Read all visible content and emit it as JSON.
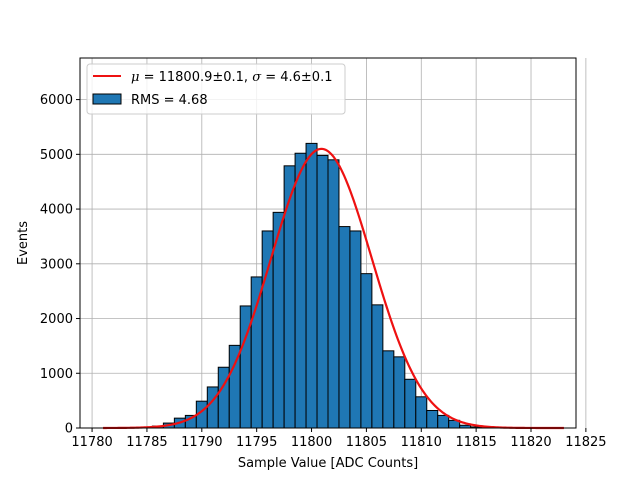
{
  "chart_data": {
    "type": "bar",
    "xlabel": "Sample Value [ADC Counts]",
    "ylabel": "Events",
    "xlim": [
      11778.9,
      11824.1
    ],
    "ylim": [
      0,
      6760
    ],
    "grid": true,
    "legend_position": "top-left",
    "xticks": [
      11780,
      11785,
      11790,
      11795,
      11800,
      11805,
      11810,
      11815,
      11820,
      11825
    ],
    "xtick_labels": [
      "11780",
      "11785",
      "11790",
      "11795",
      "11800",
      "11805",
      "11810",
      "11815",
      "11820",
      "11825"
    ],
    "yticks": [
      0,
      1000,
      2000,
      3000,
      4000,
      5000,
      6000
    ],
    "ytick_labels": [
      "0",
      "1000",
      "2000",
      "3000",
      "4000",
      "5000",
      "6000"
    ],
    "histogram": {
      "bin_width": 1,
      "color": "#1f77b4",
      "edge_color": "#000000",
      "bins": [
        {
          "x": 11783,
          "value": 5
        },
        {
          "x": 11784,
          "value": 10
        },
        {
          "x": 11785,
          "value": 15
        },
        {
          "x": 11786,
          "value": 35
        },
        {
          "x": 11787,
          "value": 90
        },
        {
          "x": 11788,
          "value": 180
        },
        {
          "x": 11789,
          "value": 230
        },
        {
          "x": 11790,
          "value": 490
        },
        {
          "x": 11791,
          "value": 750
        },
        {
          "x": 11792,
          "value": 1110
        },
        {
          "x": 11793,
          "value": 1510
        },
        {
          "x": 11794,
          "value": 2230
        },
        {
          "x": 11795,
          "value": 2760
        },
        {
          "x": 11796,
          "value": 3600
        },
        {
          "x": 11797,
          "value": 3940
        },
        {
          "x": 11798,
          "value": 4790
        },
        {
          "x": 11799,
          "value": 5020
        },
        {
          "x": 11800,
          "value": 5200
        },
        {
          "x": 11801,
          "value": 4980
        },
        {
          "x": 11802,
          "value": 4900
        },
        {
          "x": 11803,
          "value": 3680
        },
        {
          "x": 11804,
          "value": 3600
        },
        {
          "x": 11805,
          "value": 2820
        },
        {
          "x": 11806,
          "value": 2250
        },
        {
          "x": 11807,
          "value": 1410
        },
        {
          "x": 11808,
          "value": 1300
        },
        {
          "x": 11809,
          "value": 890
        },
        {
          "x": 11810,
          "value": 570
        },
        {
          "x": 11811,
          "value": 320
        },
        {
          "x": 11812,
          "value": 230
        },
        {
          "x": 11813,
          "value": 140
        },
        {
          "x": 11814,
          "value": 50
        },
        {
          "x": 11815,
          "value": 20
        },
        {
          "x": 11816,
          "value": 5
        }
      ]
    },
    "fit": {
      "type": "gaussian",
      "mu": 11800.9,
      "sigma": 4.6,
      "amplitude": 5100,
      "x_range": [
        11781,
        11823
      ],
      "color": "#ee1111"
    },
    "legend": [
      {
        "kind": "line",
        "color": "#ee1111",
        "mu_text": "μ",
        "mu_value": " = 11800.9±0.1, ",
        "sigma_text": "σ",
        "sigma_value": " = 4.6±0.1"
      },
      {
        "kind": "patch",
        "color": "#1f77b4",
        "text": "RMS = 4.68"
      }
    ]
  }
}
